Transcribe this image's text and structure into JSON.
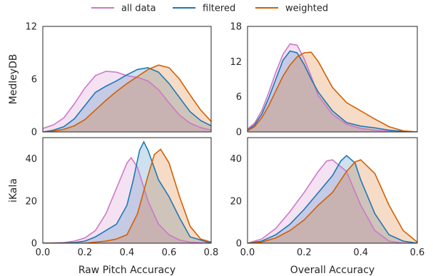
{
  "colors": {
    "all data": "#cc79c6",
    "filtered": "#1f77b4",
    "weighted": "#d45f00"
  },
  "chart_data": {
    "type": "area",
    "legend": {
      "placement": "top-center",
      "entries": [
        "all data",
        "filtered",
        "weighted"
      ]
    },
    "row_labels": [
      "MedleyDB",
      "iKala"
    ],
    "col_xlabels": [
      "Raw Pitch Accuracy",
      "Overall Accuracy"
    ],
    "panels": [
      {
        "id": "medleydb-raw",
        "row": 0,
        "col": 0,
        "ylabel": "MedleyDB",
        "xlabel": "",
        "xlim": [
          0.0,
          0.8
        ],
        "ylim": [
          0,
          12
        ],
        "yticks": [
          0,
          6,
          12
        ],
        "xticks": [],
        "series": [
          {
            "name": "all data",
            "x": [
              0.0,
              0.05,
              0.1,
              0.15,
              0.2,
              0.25,
              0.3,
              0.35,
              0.4,
              0.45,
              0.5,
              0.55,
              0.6,
              0.65,
              0.7,
              0.75,
              0.8
            ],
            "y": [
              0.4,
              0.8,
              1.6,
              3.2,
              5.0,
              6.4,
              6.9,
              6.8,
              6.4,
              6.2,
              5.8,
              4.8,
              3.3,
              1.9,
              1.0,
              0.5,
              0.2
            ]
          },
          {
            "name": "filtered",
            "x": [
              0.0,
              0.05,
              0.1,
              0.15,
              0.2,
              0.25,
              0.3,
              0.35,
              0.4,
              0.45,
              0.5,
              0.55,
              0.6,
              0.65,
              0.7,
              0.75,
              0.8
            ],
            "y": [
              0.0,
              0.2,
              0.6,
              1.5,
              3.0,
              4.5,
              5.2,
              5.8,
              6.5,
              7.1,
              7.3,
              6.8,
              5.5,
              3.9,
              2.3,
              1.3,
              0.7
            ]
          },
          {
            "name": "weighted",
            "x": [
              0.0,
              0.05,
              0.1,
              0.15,
              0.2,
              0.25,
              0.3,
              0.35,
              0.4,
              0.45,
              0.5,
              0.55,
              0.6,
              0.65,
              0.7,
              0.75,
              0.8
            ],
            "y": [
              0.0,
              0.1,
              0.3,
              0.7,
              1.4,
              2.5,
              3.6,
              4.6,
              5.5,
              6.3,
              7.1,
              7.6,
              7.3,
              6.0,
              4.2,
              2.5,
              1.2
            ]
          }
        ]
      },
      {
        "id": "medleydb-overall",
        "row": 0,
        "col": 1,
        "ylabel": "",
        "xlabel": "",
        "xlim": [
          0.0,
          0.6
        ],
        "ylim": [
          0,
          18
        ],
        "yticks": [
          0,
          6,
          12,
          18
        ],
        "xticks": [],
        "series": [
          {
            "name": "all data",
            "x": [
              0.0,
              0.025,
              0.05,
              0.075,
              0.1,
              0.125,
              0.15,
              0.175,
              0.2,
              0.225,
              0.25,
              0.3,
              0.35,
              0.4,
              0.45,
              0.5,
              0.55,
              0.6
            ],
            "y": [
              0.5,
              1.5,
              3.6,
              6.7,
              10.2,
              13.2,
              15.0,
              14.8,
              12.5,
              9.5,
              6.2,
              3.0,
              1.3,
              0.6,
              0.3,
              0.1,
              0.0,
              0.0
            ]
          },
          {
            "name": "filtered",
            "x": [
              0.0,
              0.025,
              0.05,
              0.075,
              0.1,
              0.125,
              0.15,
              0.175,
              0.2,
              0.225,
              0.25,
              0.3,
              0.35,
              0.4,
              0.45,
              0.5,
              0.55,
              0.6
            ],
            "y": [
              0.3,
              1.2,
              3.0,
              5.8,
              9.0,
              12.2,
              13.8,
              13.5,
              11.5,
              9.0,
              6.8,
              3.6,
              1.6,
              1.0,
              0.7,
              0.3,
              0.1,
              0.0
            ]
          },
          {
            "name": "weighted",
            "x": [
              0.0,
              0.025,
              0.05,
              0.075,
              0.1,
              0.125,
              0.15,
              0.175,
              0.2,
              0.225,
              0.25,
              0.3,
              0.35,
              0.4,
              0.45,
              0.5,
              0.55,
              0.6
            ],
            "y": [
              0.2,
              0.9,
              2.4,
              4.5,
              7.0,
              9.5,
              11.4,
              12.8,
              13.5,
              13.6,
              12.0,
              7.6,
              5.0,
              3.6,
              2.2,
              0.9,
              0.2,
              0.0
            ]
          }
        ]
      },
      {
        "id": "ikala-raw",
        "row": 1,
        "col": 0,
        "ylabel": "iKala",
        "xlabel": "Raw Pitch Accuracy",
        "xlim": [
          0.0,
          0.8
        ],
        "ylim": [
          0,
          50
        ],
        "yticks": [
          0,
          20,
          40
        ],
        "xticks": [
          "0.0",
          "0.2",
          "0.4",
          "0.6",
          "0.8"
        ],
        "series": [
          {
            "name": "all data",
            "x": [
              0.0,
              0.1,
              0.15,
              0.2,
              0.25,
              0.3,
              0.35,
              0.4,
              0.42,
              0.45,
              0.5,
              0.55,
              0.6,
              0.65,
              0.7,
              0.8
            ],
            "y": [
              0.0,
              0.3,
              1.0,
              2.5,
              6.0,
              14.0,
              26.0,
              38.0,
              40.5,
              36.0,
              20.0,
              9.0,
              4.0,
              1.5,
              0.5,
              0.0
            ]
          },
          {
            "name": "filtered",
            "x": [
              0.0,
              0.1,
              0.15,
              0.2,
              0.25,
              0.3,
              0.35,
              0.4,
              0.43,
              0.46,
              0.48,
              0.5,
              0.55,
              0.6,
              0.65,
              0.7,
              0.8
            ],
            "y": [
              0.0,
              0.1,
              0.3,
              1.0,
              3.0,
              6.0,
              9.0,
              18.0,
              30.0,
              44.0,
              48.0,
              44.0,
              30.0,
              22.0,
              12.0,
              3.0,
              0.0
            ]
          },
          {
            "name": "weighted",
            "x": [
              0.0,
              0.2,
              0.25,
              0.3,
              0.35,
              0.4,
              0.45,
              0.5,
              0.53,
              0.56,
              0.6,
              0.65,
              0.7,
              0.75,
              0.8
            ],
            "y": [
              0.0,
              0.0,
              0.5,
              1.0,
              2.0,
              4.0,
              14.0,
              32.0,
              42.0,
              44.5,
              38.0,
              22.0,
              8.0,
              2.0,
              0.5
            ]
          }
        ]
      },
      {
        "id": "ikala-overall",
        "row": 1,
        "col": 1,
        "ylabel": "",
        "xlabel": "Overall Accuracy",
        "xlim": [
          0.0,
          0.6
        ],
        "ylim": [
          0,
          50
        ],
        "yticks": [
          0,
          20,
          40
        ],
        "xticks": [
          "0.0",
          "0.2",
          "0.4",
          "0.6"
        ],
        "series": [
          {
            "name": "all data",
            "x": [
              0.0,
              0.05,
              0.1,
              0.15,
              0.2,
              0.25,
              0.28,
              0.3,
              0.35,
              0.4,
              0.45,
              0.5,
              0.55,
              0.6
            ],
            "y": [
              0.0,
              2.0,
              7.0,
              15.0,
              24.0,
              34.0,
              39.0,
              39.5,
              34.0,
              18.0,
              6.0,
              1.0,
              0.0,
              0.0
            ]
          },
          {
            "name": "filtered",
            "x": [
              0.0,
              0.05,
              0.1,
              0.15,
              0.2,
              0.25,
              0.3,
              0.33,
              0.35,
              0.38,
              0.4,
              0.45,
              0.5,
              0.55,
              0.6
            ],
            "y": [
              0.0,
              1.0,
              4.0,
              9.0,
              16.0,
              24.0,
              32.0,
              39.0,
              41.5,
              38.0,
              30.0,
              14.0,
              4.0,
              1.0,
              0.0
            ]
          },
          {
            "name": "weighted",
            "x": [
              0.0,
              0.05,
              0.1,
              0.15,
              0.2,
              0.25,
              0.3,
              0.35,
              0.38,
              0.4,
              0.45,
              0.5,
              0.55,
              0.6
            ],
            "y": [
              0.0,
              0.5,
              2.5,
              6.0,
              11.0,
              18.0,
              24.0,
              34.0,
              38.5,
              39.5,
              33.0,
              18.0,
              6.0,
              0.5
            ]
          }
        ]
      }
    ]
  }
}
